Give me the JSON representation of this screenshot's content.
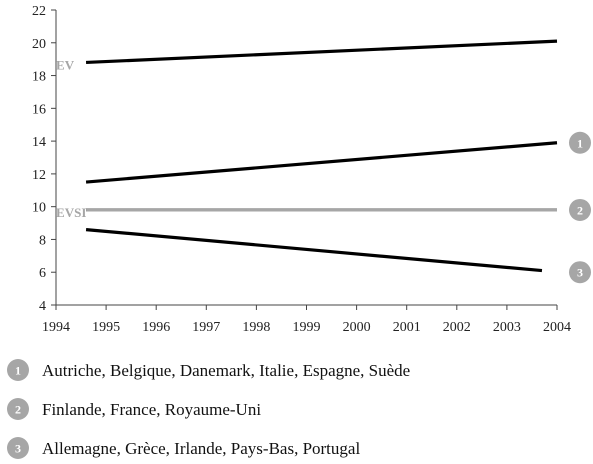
{
  "chart_data": {
    "type": "line",
    "xlim": [
      1994,
      2004
    ],
    "ylim": [
      4,
      22
    ],
    "x_ticks": [
      1994,
      1995,
      1996,
      1997,
      1998,
      1999,
      2000,
      2001,
      2002,
      2003,
      2004
    ],
    "y_ticks": [
      4,
      6,
      8,
      10,
      12,
      14,
      16,
      18,
      20,
      22
    ],
    "grid": false,
    "series": [
      {
        "name": "EV",
        "x": [
          1994.6,
          2004
        ],
        "y": [
          18.8,
          20.1
        ],
        "color": "#000000"
      },
      {
        "marker": "1",
        "x": [
          1994.6,
          2004
        ],
        "y": [
          11.5,
          13.9
        ],
        "color": "#000000"
      },
      {
        "name": "EVSI",
        "x": [
          1994.6,
          2004
        ],
        "y": [
          9.8,
          9.8
        ],
        "color": "#000000"
      },
      {
        "marker": "2",
        "x": [
          1994.6,
          2004
        ],
        "y": [
          9.8,
          9.8
        ],
        "color": "#a6a6a6"
      },
      {
        "marker": "3",
        "x": [
          1994.6,
          2003.7
        ],
        "y": [
          8.6,
          6.1
        ],
        "color": "#000000"
      }
    ],
    "markers": [
      {
        "label": "1",
        "y": 13.9
      },
      {
        "label": "2",
        "y": 9.8
      },
      {
        "label": "3",
        "y": 6.0
      }
    ],
    "legend": [
      {
        "marker": "1",
        "text": "Autriche, Belgique, Danemark, Italie, Espagne, Suède"
      },
      {
        "marker": "2",
        "text": "Finlande, France, Royaume-Uni"
      },
      {
        "marker": "3",
        "text": "Allemagne, Grèce, Irlande, Pays-Bas, Portugal"
      }
    ],
    "legend_position": "bottom",
    "marker_color": "#a6a6a6",
    "label_color": "#a6a6a6",
    "line_color": "#000000"
  }
}
